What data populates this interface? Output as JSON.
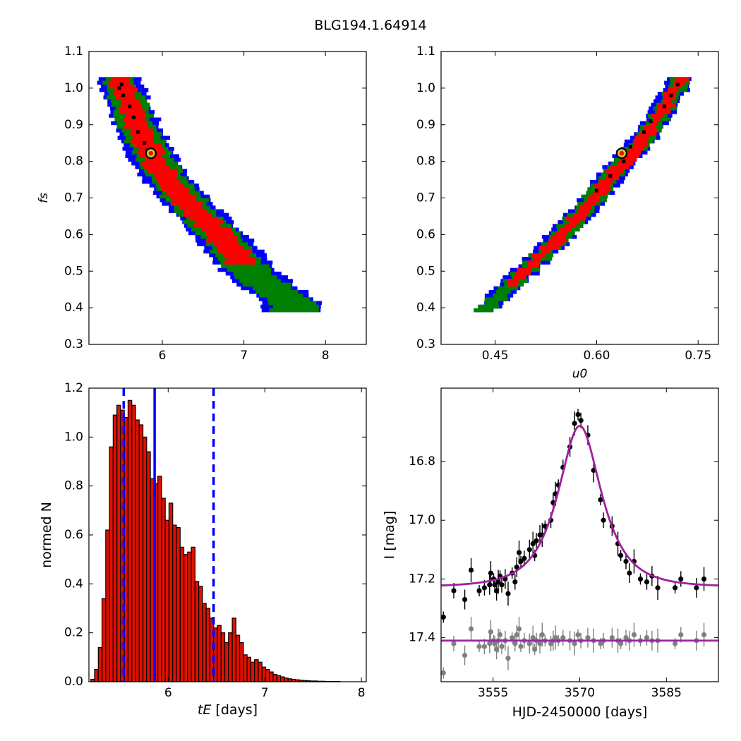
{
  "title": "BLG194.1.64914",
  "chart_data": [
    {
      "type": "heatmap",
      "panel": "fs-vs-tE",
      "xlim": [
        5.1,
        8.5
      ],
      "ylim": [
        0.3,
        1.1
      ],
      "xticks": [
        6,
        7,
        8
      ],
      "yticks": [
        0.3,
        0.4,
        0.5,
        0.6,
        0.7,
        0.8,
        0.9,
        1.0,
        1.1
      ],
      "xlabel": "",
      "ylabel": "f_s",
      "best_fit": {
        "x": 5.86,
        "y": 0.822
      },
      "colors": {
        "outer": "#0000ff",
        "middle": "#007f00",
        "inner": "#ff0000",
        "samples": "#000000",
        "marker": "#c8c832"
      },
      "band": {
        "center_line": [
          [
            5.48,
            1.03
          ],
          [
            5.7,
            0.9
          ],
          [
            5.92,
            0.8
          ],
          [
            6.2,
            0.72
          ],
          [
            6.5,
            0.65
          ],
          [
            6.8,
            0.58
          ],
          [
            7.1,
            0.5
          ],
          [
            7.35,
            0.46
          ],
          [
            7.6,
            0.42
          ]
        ],
        "x_halfwidth_by_level": {
          "inner": [
            0.12,
            0.2
          ],
          "middle": [
            0.2,
            0.28
          ],
          "outer": [
            0.26,
            0.36
          ]
        },
        "y_range": [
          0.39,
          1.03
        ],
        "inner_y_min": 0.53
      },
      "samples": [
        [
          5.47,
          1.0
        ],
        [
          5.52,
          0.98
        ],
        [
          5.6,
          0.95
        ],
        [
          5.65,
          0.92
        ],
        [
          5.7,
          0.88
        ],
        [
          5.78,
          0.85
        ],
        [
          5.82,
          0.83
        ],
        [
          5.5,
          1.01
        ]
      ]
    },
    {
      "type": "heatmap",
      "panel": "fs-vs-u0",
      "xlim": [
        0.37,
        0.78
      ],
      "ylim": [
        0.3,
        1.1
      ],
      "xticks": [
        0.45,
        0.6,
        0.75
      ],
      "xtick_labels": [
        "0.45",
        "0.60",
        "0.75"
      ],
      "yticks": [
        0.3,
        0.4,
        0.5,
        0.6,
        0.7,
        0.8,
        0.9,
        1.0,
        1.1
      ],
      "xlabel": "u_0",
      "ylabel": "",
      "best_fit": {
        "x": 0.637,
        "y": 0.822
      },
      "colors": {
        "outer": "#0000ff",
        "middle": "#007f00",
        "inner": "#ff0000",
        "samples": "#000000",
        "marker": "#c8c832"
      },
      "band": {
        "center_line": [
          [
            0.43,
            0.39
          ],
          [
            0.48,
            0.48
          ],
          [
            0.53,
            0.57
          ],
          [
            0.58,
            0.67
          ],
          [
            0.63,
            0.78
          ],
          [
            0.67,
            0.87
          ],
          [
            0.7,
            0.95
          ],
          [
            0.725,
            1.03
          ]
        ],
        "x_halfwidth_by_level": {
          "inner": [
            0.008,
            0.014
          ],
          "middle": [
            0.013,
            0.02
          ],
          "outer": [
            0.017,
            0.025
          ]
        },
        "y_range": [
          0.39,
          1.03
        ],
        "inner_y_min": 0.47
      },
      "samples": [
        [
          0.6,
          0.72
        ],
        [
          0.62,
          0.76
        ],
        [
          0.64,
          0.8
        ],
        [
          0.65,
          0.84
        ],
        [
          0.67,
          0.88
        ],
        [
          0.68,
          0.91
        ],
        [
          0.7,
          0.95
        ],
        [
          0.71,
          0.98
        ],
        [
          0.72,
          1.01
        ]
      ]
    },
    {
      "type": "bar",
      "panel": "tE-histogram",
      "xlim": [
        5.18,
        8.05
      ],
      "ylim": [
        0.0,
        1.2
      ],
      "xticks": [
        6,
        7,
        8
      ],
      "yticks": [
        0.0,
        0.2,
        0.4,
        0.6,
        0.8,
        1.0,
        1.2
      ],
      "xlabel": "t_E [days]",
      "ylabel": "normed N",
      "bin_start": 5.2,
      "bin_width": 0.0385,
      "values": [
        0.01,
        0.05,
        0.14,
        0.34,
        0.62,
        0.96,
        1.09,
        1.13,
        1.11,
        1.08,
        1.15,
        1.13,
        1.07,
        1.05,
        1.0,
        0.94,
        0.83,
        0.81,
        0.84,
        0.75,
        0.66,
        0.73,
        0.64,
        0.63,
        0.55,
        0.52,
        0.53,
        0.55,
        0.41,
        0.39,
        0.32,
        0.3,
        0.26,
        0.22,
        0.23,
        0.2,
        0.16,
        0.2,
        0.26,
        0.19,
        0.16,
        0.11,
        0.1,
        0.08,
        0.09,
        0.08,
        0.06,
        0.05,
        0.04,
        0.03,
        0.025,
        0.02,
        0.015,
        0.012,
        0.01,
        0.008,
        0.006,
        0.005,
        0.004,
        0.003,
        0.003,
        0.002,
        0.002,
        0.001,
        0.001,
        0.001,
        0.001,
        0.0,
        0.0,
        0.0,
        0.0,
        0.0,
        0.0
      ],
      "median": 5.86,
      "lower": 5.54,
      "upper": 6.47,
      "colors": {
        "bar": "#dd1100",
        "line": "#0000ff"
      }
    },
    {
      "type": "scatter",
      "panel": "lightcurve",
      "xlim": [
        3546,
        3594
      ],
      "ylim": [
        17.55,
        16.55
      ],
      "xticks": [
        3555,
        3570,
        3585
      ],
      "yticks": [
        16.8,
        17.0,
        17.2,
        17.4
      ],
      "ytick_labels": [
        "16.8",
        "17.0",
        "17.2",
        "17.4"
      ],
      "xlabel": "HJD-2450000 [days]",
      "ylabel": "I [mag]",
      "model": {
        "t0": 3570.0,
        "tE": 5.86,
        "u0": 0.637,
        "fs": 0.822,
        "base_mag": 17.227
      },
      "residual_baseline": 17.41,
      "colors": {
        "model": "#a020a0",
        "data": "#000000",
        "residual": "#808080"
      },
      "data": [
        [
          3546.4,
          17.33
        ],
        [
          3548.2,
          17.24
        ],
        [
          3550.1,
          17.27
        ],
        [
          3551.2,
          17.17
        ],
        [
          3552.6,
          17.24
        ],
        [
          3553.5,
          17.23
        ],
        [
          3554.4,
          17.22
        ],
        [
          3554.6,
          17.18
        ],
        [
          3555.1,
          17.2
        ],
        [
          3555.3,
          17.22
        ],
        [
          3555.6,
          17.24
        ],
        [
          3555.9,
          17.21
        ],
        [
          3556.2,
          17.19
        ],
        [
          3556.5,
          17.22
        ],
        [
          3557.1,
          17.2
        ],
        [
          3557.6,
          17.25
        ],
        [
          3558.3,
          17.18
        ],
        [
          3558.8,
          17.21
        ],
        [
          3559.1,
          17.16
        ],
        [
          3559.5,
          17.11
        ],
        [
          3559.8,
          17.14
        ],
        [
          3560.4,
          17.13
        ],
        [
          3561.3,
          17.1
        ],
        [
          3561.9,
          17.08
        ],
        [
          3562.2,
          17.12
        ],
        [
          3562.5,
          17.07
        ],
        [
          3563.1,
          17.05
        ],
        [
          3563.5,
          17.05
        ],
        [
          3564.0,
          17.02
        ],
        [
          3565.0,
          17.0
        ],
        [
          3565.4,
          16.94
        ],
        [
          3565.8,
          16.91
        ],
        [
          3566.3,
          16.88
        ],
        [
          3567.1,
          16.82
        ],
        [
          3568.3,
          16.75
        ],
        [
          3569.1,
          16.67
        ],
        [
          3569.7,
          16.64
        ],
        [
          3570.2,
          16.66
        ],
        [
          3571.4,
          16.71
        ],
        [
          3572.4,
          16.83
        ],
        [
          3573.6,
          16.93
        ],
        [
          3574.1,
          17.0
        ],
        [
          3575.6,
          17.02
        ],
        [
          3576.6,
          17.08
        ],
        [
          3577.1,
          17.12
        ],
        [
          3578.0,
          17.14
        ],
        [
          3578.6,
          17.18
        ],
        [
          3579.4,
          17.14
        ],
        [
          3580.5,
          17.2
        ],
        [
          3581.6,
          17.21
        ],
        [
          3582.5,
          17.19
        ],
        [
          3583.5,
          17.23
        ],
        [
          3586.5,
          17.23
        ],
        [
          3587.5,
          17.2
        ],
        [
          3590.2,
          17.23
        ],
        [
          3591.5,
          17.2
        ]
      ],
      "residual_data": [
        [
          3546.4,
          17.52
        ],
        [
          3548.2,
          17.42
        ],
        [
          3550.1,
          17.46
        ],
        [
          3551.2,
          17.37
        ],
        [
          3552.6,
          17.43
        ],
        [
          3553.5,
          17.43
        ],
        [
          3554.4,
          17.42
        ],
        [
          3554.6,
          17.38
        ],
        [
          3555.1,
          17.41
        ],
        [
          3555.3,
          17.42
        ],
        [
          3555.6,
          17.44
        ],
        [
          3555.9,
          17.41
        ],
        [
          3556.2,
          17.39
        ],
        [
          3556.5,
          17.43
        ],
        [
          3557.1,
          17.41
        ],
        [
          3557.6,
          17.47
        ],
        [
          3558.3,
          17.4
        ],
        [
          3558.8,
          17.42
        ],
        [
          3559.1,
          17.39
        ],
        [
          3559.5,
          17.37
        ],
        [
          3559.8,
          17.43
        ],
        [
          3560.4,
          17.41
        ],
        [
          3561.3,
          17.42
        ],
        [
          3561.9,
          17.4
        ],
        [
          3562.2,
          17.44
        ],
        [
          3562.5,
          17.41
        ],
        [
          3563.1,
          17.42
        ],
        [
          3563.5,
          17.39
        ],
        [
          3564.0,
          17.41
        ],
        [
          3565.0,
          17.42
        ],
        [
          3565.4,
          17.41
        ],
        [
          3565.8,
          17.4
        ],
        [
          3566.3,
          17.41
        ],
        [
          3567.1,
          17.4
        ],
        [
          3568.3,
          17.41
        ],
        [
          3569.1,
          17.42
        ],
        [
          3569.7,
          17.39
        ],
        [
          3570.2,
          17.41
        ],
        [
          3571.4,
          17.4
        ],
        [
          3572.4,
          17.41
        ],
        [
          3573.6,
          17.42
        ],
        [
          3574.1,
          17.41
        ],
        [
          3575.6,
          17.4
        ],
        [
          3576.6,
          17.41
        ],
        [
          3577.1,
          17.42
        ],
        [
          3578.0,
          17.4
        ],
        [
          3578.6,
          17.41
        ],
        [
          3579.4,
          17.39
        ],
        [
          3580.5,
          17.41
        ],
        [
          3581.6,
          17.4
        ],
        [
          3582.5,
          17.41
        ],
        [
          3583.5,
          17.41
        ],
        [
          3586.5,
          17.42
        ],
        [
          3587.5,
          17.39
        ],
        [
          3590.2,
          17.41
        ],
        [
          3591.5,
          17.39
        ]
      ]
    }
  ]
}
